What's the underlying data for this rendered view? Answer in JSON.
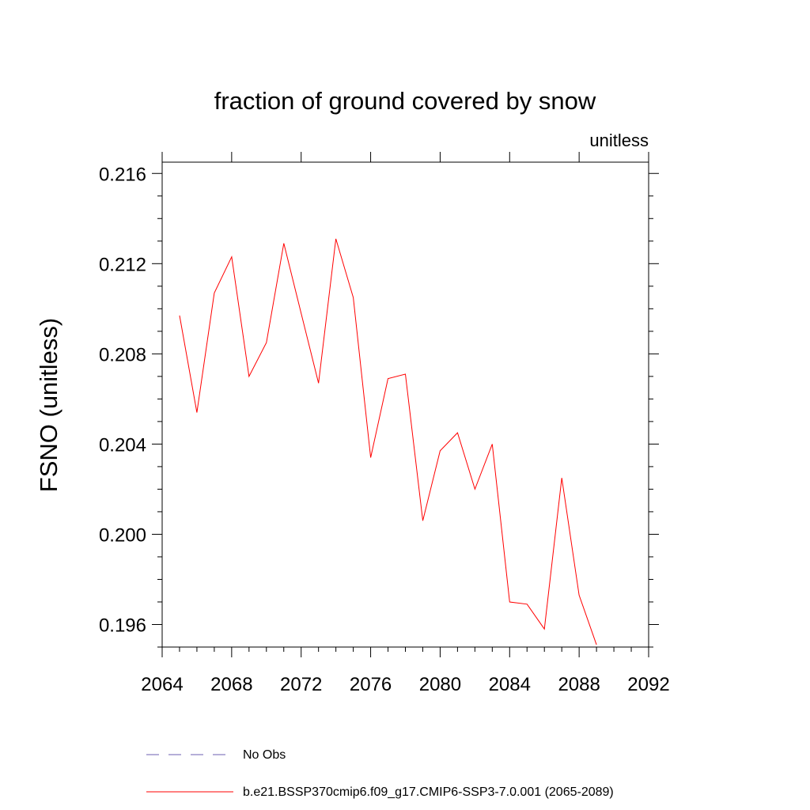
{
  "chart_data": {
    "type": "line",
    "title": "fraction of ground covered by snow",
    "units": "unitless",
    "ylabel": "FSNO  (unitless)",
    "xlabel": "",
    "xlim": [
      2064,
      2092
    ],
    "ylim": [
      0.195,
      0.2165
    ],
    "x_ticks": [
      2064,
      2068,
      2072,
      2076,
      2080,
      2084,
      2088,
      2092
    ],
    "x_tick_labels": [
      "2064",
      "2068",
      "2072",
      "2076",
      "2080",
      "2084",
      "2088",
      "2092"
    ],
    "y_ticks": [
      0.196,
      0.2,
      0.204,
      0.208,
      0.212,
      0.216
    ],
    "y_tick_labels": [
      "0.196",
      "0.200",
      "0.204",
      "0.208",
      "0.212",
      "0.216"
    ],
    "series": [
      {
        "name": "b.e21.BSSP370cmip6.f09_g17.CMIP6-SSP3-7.0.001 (2065-2089)",
        "color": "#ff0000",
        "x": [
          2065,
          2066,
          2067,
          2068,
          2069,
          2070,
          2071,
          2072,
          2073,
          2074,
          2075,
          2076,
          2077,
          2078,
          2079,
          2080,
          2081,
          2082,
          2083,
          2084,
          2085,
          2086,
          2087,
          2088,
          2089
        ],
        "values": [
          0.2097,
          0.2054,
          0.2107,
          0.2123,
          0.207,
          0.2085,
          0.2129,
          0.2098,
          0.2067,
          0.2131,
          0.2105,
          0.2034,
          0.2069,
          0.2071,
          0.2006,
          0.2037,
          0.2045,
          0.202,
          0.204,
          0.197,
          0.1969,
          0.1958,
          0.2025,
          0.1973,
          0.1951
        ]
      }
    ],
    "legend": [
      {
        "label": "No Obs",
        "style": "dashed",
        "color": "#6b5fb0"
      },
      {
        "label": "b.e21.BSSP370cmip6.f09_g17.CMIP6-SSP3-7.0.001 (2065-2089)",
        "style": "solid",
        "color": "#ff0000"
      }
    ],
    "grid": false
  }
}
